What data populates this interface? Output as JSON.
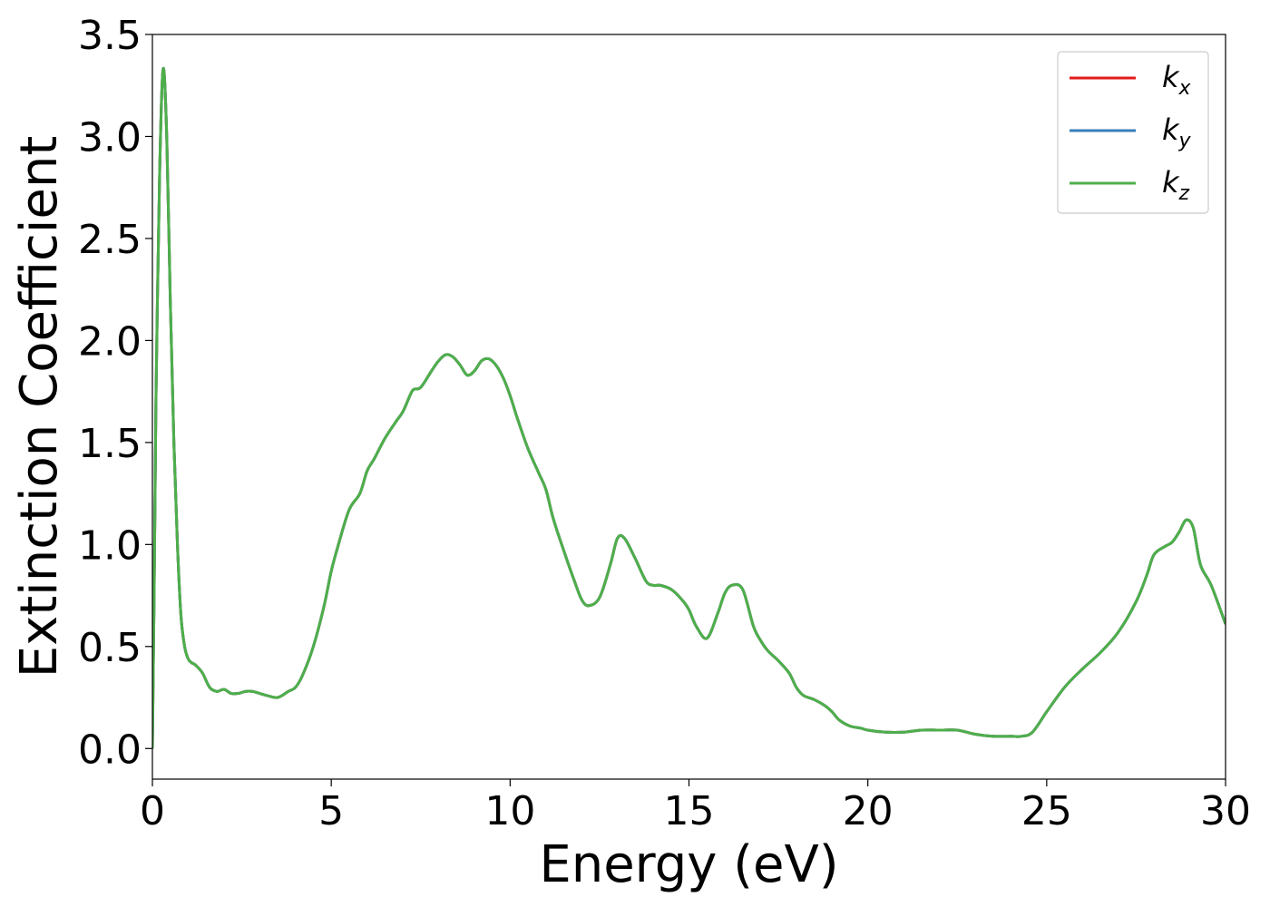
{
  "chart_data": {
    "type": "line",
    "title": "",
    "xlabel": "Energy (eV)",
    "ylabel": "Extinction Coefficient",
    "xlim": [
      0,
      30
    ],
    "ylim": [
      -0.15,
      3.5
    ],
    "xticks": [
      0,
      5,
      10,
      15,
      20,
      25,
      30
    ],
    "xtick_labels": [
      "0",
      "5",
      "10",
      "15",
      "20",
      "25",
      "30"
    ],
    "yticks": [
      0.0,
      0.5,
      1.0,
      1.5,
      2.0,
      2.5,
      3.0,
      3.5
    ],
    "ytick_labels": [
      "0.0",
      "0.5",
      "1.0",
      "1.5",
      "2.0",
      "2.5",
      "3.0",
      "3.5"
    ],
    "grid": false,
    "legend_position": "top-right",
    "x": [
      0,
      0.05,
      0.1,
      0.2,
      0.3,
      0.4,
      0.5,
      0.6,
      0.7,
      0.8,
      0.9,
      1.0,
      1.1,
      1.2,
      1.4,
      1.6,
      1.8,
      2.0,
      2.2,
      2.4,
      2.6,
      2.8,
      3.0,
      3.2,
      3.5,
      3.8,
      4.0,
      4.2,
      4.5,
      4.8,
      5.0,
      5.2,
      5.5,
      5.8,
      6.0,
      6.2,
      6.5,
      6.8,
      7.0,
      7.2,
      7.3,
      7.5,
      7.8,
      8.0,
      8.2,
      8.4,
      8.6,
      8.8,
      9.0,
      9.2,
      9.4,
      9.6,
      9.8,
      10.0,
      10.2,
      10.5,
      10.8,
      11.0,
      11.2,
      11.5,
      11.8,
      12.0,
      12.2,
      12.5,
      12.8,
      13.0,
      13.2,
      13.5,
      13.8,
      14.0,
      14.2,
      14.5,
      14.8,
      15.0,
      15.2,
      15.5,
      15.8,
      16.0,
      16.2,
      16.5,
      16.8,
      17.0,
      17.2,
      17.5,
      17.8,
      18.0,
      18.2,
      18.5,
      18.8,
      19.0,
      19.2,
      19.5,
      19.8,
      20.0,
      20.5,
      21.0,
      21.5,
      22.0,
      22.5,
      23.0,
      23.5,
      24.0,
      24.3,
      24.6,
      25.0,
      25.5,
      26.0,
      26.5,
      27.0,
      27.5,
      27.8,
      28.0,
      28.3,
      28.5,
      28.7,
      28.9,
      29.1,
      29.3,
      29.6,
      30.0
    ],
    "series": [
      {
        "name": "k_x",
        "color": "#e41a1c",
        "values": [
          0.0,
          0.8,
          1.7,
          2.8,
          3.33,
          3.0,
          2.2,
          1.5,
          1.0,
          0.65,
          0.5,
          0.44,
          0.42,
          0.41,
          0.37,
          0.3,
          0.28,
          0.29,
          0.27,
          0.27,
          0.28,
          0.28,
          0.27,
          0.26,
          0.25,
          0.28,
          0.3,
          0.36,
          0.5,
          0.7,
          0.87,
          1.0,
          1.17,
          1.25,
          1.36,
          1.42,
          1.52,
          1.6,
          1.65,
          1.73,
          1.76,
          1.77,
          1.85,
          1.9,
          1.93,
          1.92,
          1.88,
          1.83,
          1.85,
          1.9,
          1.91,
          1.88,
          1.82,
          1.73,
          1.62,
          1.47,
          1.35,
          1.27,
          1.13,
          0.97,
          0.82,
          0.73,
          0.7,
          0.74,
          0.9,
          1.03,
          1.03,
          0.93,
          0.82,
          0.8,
          0.8,
          0.78,
          0.73,
          0.68,
          0.6,
          0.54,
          0.66,
          0.76,
          0.8,
          0.78,
          0.6,
          0.53,
          0.48,
          0.43,
          0.37,
          0.3,
          0.26,
          0.24,
          0.21,
          0.18,
          0.14,
          0.11,
          0.1,
          0.09,
          0.08,
          0.08,
          0.09,
          0.09,
          0.09,
          0.07,
          0.06,
          0.06,
          0.06,
          0.08,
          0.18,
          0.3,
          0.39,
          0.47,
          0.57,
          0.72,
          0.85,
          0.95,
          0.99,
          1.01,
          1.06,
          1.12,
          1.08,
          0.9,
          0.8,
          0.61
        ]
      },
      {
        "name": "k_y",
        "color": "#377eb8",
        "values": [
          0.0,
          0.8,
          1.7,
          2.8,
          3.33,
          3.0,
          2.2,
          1.5,
          1.0,
          0.65,
          0.5,
          0.44,
          0.42,
          0.41,
          0.37,
          0.3,
          0.28,
          0.29,
          0.27,
          0.27,
          0.28,
          0.28,
          0.27,
          0.26,
          0.25,
          0.28,
          0.3,
          0.36,
          0.5,
          0.7,
          0.87,
          1.0,
          1.17,
          1.25,
          1.36,
          1.42,
          1.52,
          1.6,
          1.65,
          1.73,
          1.76,
          1.77,
          1.85,
          1.9,
          1.93,
          1.92,
          1.88,
          1.83,
          1.85,
          1.9,
          1.91,
          1.88,
          1.82,
          1.73,
          1.62,
          1.47,
          1.35,
          1.27,
          1.13,
          0.97,
          0.82,
          0.73,
          0.7,
          0.74,
          0.9,
          1.03,
          1.03,
          0.93,
          0.82,
          0.8,
          0.8,
          0.78,
          0.73,
          0.68,
          0.6,
          0.54,
          0.66,
          0.76,
          0.8,
          0.78,
          0.6,
          0.53,
          0.48,
          0.43,
          0.37,
          0.3,
          0.26,
          0.24,
          0.21,
          0.18,
          0.14,
          0.11,
          0.1,
          0.09,
          0.08,
          0.08,
          0.09,
          0.09,
          0.09,
          0.07,
          0.06,
          0.06,
          0.06,
          0.08,
          0.18,
          0.3,
          0.39,
          0.47,
          0.57,
          0.72,
          0.85,
          0.95,
          0.99,
          1.01,
          1.06,
          1.12,
          1.08,
          0.9,
          0.8,
          0.61
        ]
      },
      {
        "name": "k_z",
        "color": "#4daf4a",
        "values": [
          0.0,
          0.8,
          1.7,
          2.8,
          3.33,
          3.0,
          2.2,
          1.5,
          1.0,
          0.65,
          0.5,
          0.44,
          0.42,
          0.41,
          0.37,
          0.3,
          0.28,
          0.29,
          0.27,
          0.27,
          0.28,
          0.28,
          0.27,
          0.26,
          0.25,
          0.28,
          0.3,
          0.36,
          0.5,
          0.7,
          0.87,
          1.0,
          1.17,
          1.25,
          1.36,
          1.42,
          1.52,
          1.6,
          1.65,
          1.73,
          1.76,
          1.77,
          1.85,
          1.9,
          1.93,
          1.92,
          1.88,
          1.83,
          1.85,
          1.9,
          1.91,
          1.88,
          1.82,
          1.73,
          1.62,
          1.47,
          1.35,
          1.27,
          1.13,
          0.97,
          0.82,
          0.73,
          0.7,
          0.74,
          0.9,
          1.03,
          1.03,
          0.93,
          0.82,
          0.8,
          0.8,
          0.78,
          0.73,
          0.68,
          0.6,
          0.54,
          0.66,
          0.76,
          0.8,
          0.78,
          0.6,
          0.53,
          0.48,
          0.43,
          0.37,
          0.3,
          0.26,
          0.24,
          0.21,
          0.18,
          0.14,
          0.11,
          0.1,
          0.09,
          0.08,
          0.08,
          0.09,
          0.09,
          0.09,
          0.07,
          0.06,
          0.06,
          0.06,
          0.08,
          0.18,
          0.3,
          0.39,
          0.47,
          0.57,
          0.72,
          0.85,
          0.95,
          0.99,
          1.01,
          1.06,
          1.12,
          1.08,
          0.9,
          0.8,
          0.61
        ]
      }
    ],
    "legend": [
      {
        "base": "k",
        "sub": "x",
        "color": "#e41a1c"
      },
      {
        "base": "k",
        "sub": "y",
        "color": "#377eb8"
      },
      {
        "base": "k",
        "sub": "z",
        "color": "#4daf4a"
      }
    ]
  }
}
